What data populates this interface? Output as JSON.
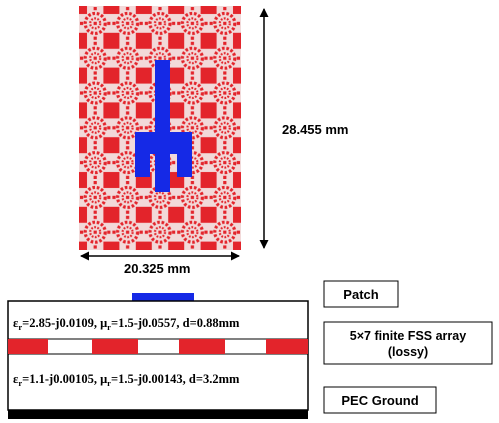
{
  "top_view": {
    "height_label": "28.455 mm",
    "width_label": "20.325 mm",
    "colors": {
      "fss_red": "#e3242b",
      "patch_blue": "#1529e6"
    }
  },
  "cross_section": {
    "layer_upper": {
      "eps_sym": "ε",
      "eps_sub": "r",
      "eps_val": "=2.85-j0.0109, ",
      "mu_sym": "μ",
      "mu_sub": "r",
      "mu_val": "=1.5-j0.0557, d=0.88mm"
    },
    "layer_lower": {
      "eps_sym": "ε",
      "eps_sub": "r",
      "eps_val": "=1.1-j0.00105, ",
      "mu_sym": "μ",
      "mu_sub": "r",
      "mu_val": "=1.5-j0.00143, d=3.2mm"
    }
  },
  "labels": {
    "patch": "Patch",
    "fss_line1": "5×7 finite FSS array",
    "fss_line2": "(lossy)",
    "ground": "PEC Ground"
  }
}
